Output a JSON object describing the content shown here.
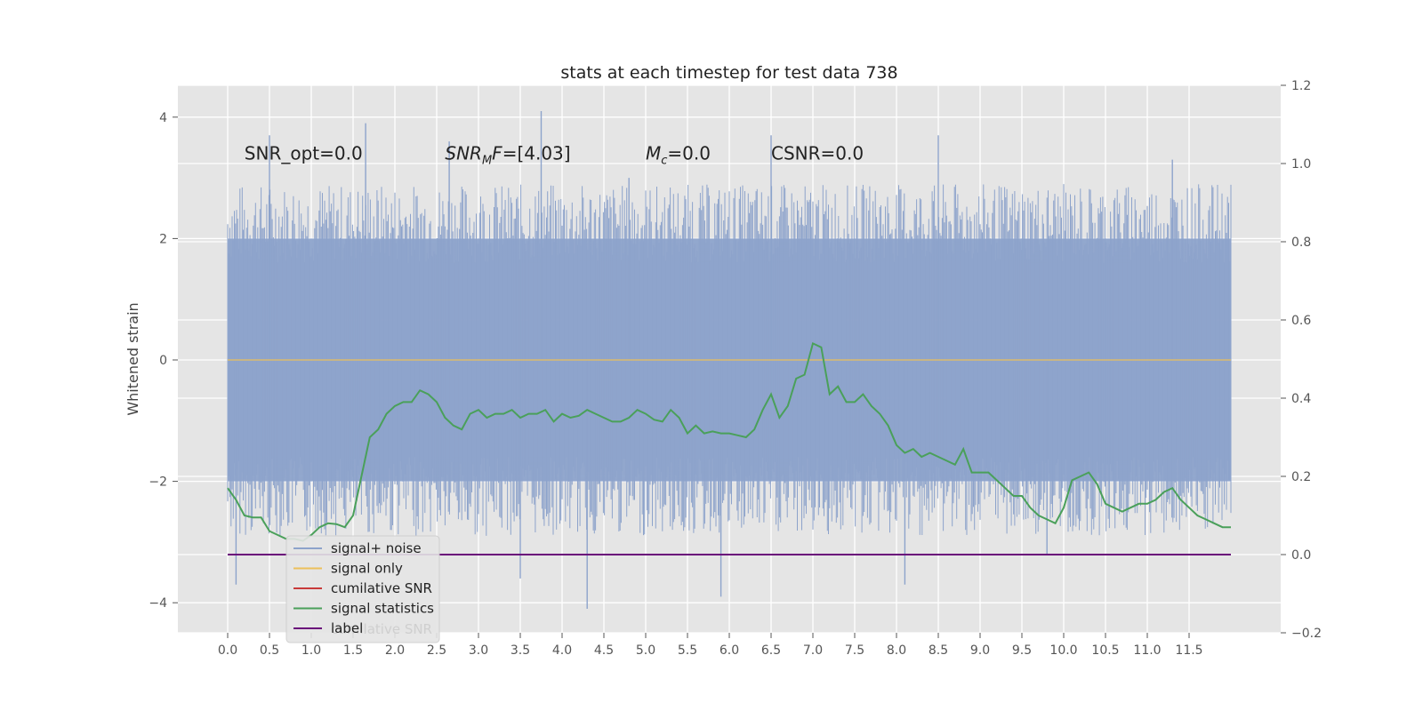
{
  "chart_data": {
    "type": "line",
    "title": "stats at each timestep for test data 738",
    "ylabel": "Whitened strain",
    "xlabel": "",
    "xlim": [
      -0.2,
      12.5
    ],
    "ylim": [
      -4.5,
      4.5
    ],
    "y2lim": [
      -0.2,
      1.2
    ],
    "grid": true,
    "background": "#e5e5e5",
    "x_ticks": [
      "0.0",
      "0.5",
      "1.0",
      "1.5",
      "2.0",
      "2.5",
      "3.0",
      "3.5",
      "4.0",
      "4.5",
      "5.0",
      "5.5",
      "6.0",
      "6.5",
      "7.0",
      "7.5",
      "8.0",
      "8.5",
      "9.0",
      "9.5",
      "10.0",
      "10.5",
      "11.0",
      "11.5"
    ],
    "y_ticks": [
      "4",
      "2",
      "0",
      "−2",
      "−4"
    ],
    "y2_ticks": [
      "1.2",
      "1.0",
      "0.8",
      "0.6",
      "0.4",
      "0.2",
      "0.0",
      "−0.2"
    ],
    "annotations": [
      {
        "text": "SNR_opt=0.0",
        "x": 0.2,
        "y": 3.3
      },
      {
        "base": "SNR",
        "sub": "M",
        "tail": "F=[4.03]",
        "x": 2.6,
        "y": 3.3
      },
      {
        "base": "M",
        "sub": "c",
        "tail": "=0.0",
        "x": 5.0,
        "y": 3.3
      },
      {
        "text": "CSNR=0.0",
        "x": 6.5,
        "y": 3.3
      }
    ],
    "legend": {
      "placement": "lower-left",
      "entries": [
        {
          "label": "signal+ noise",
          "color": "#8da3cb"
        },
        {
          "label": "signal only",
          "color": "#ecc05a"
        },
        {
          "label": "cumilative SNR",
          "color": "#c83a3a"
        },
        {
          "label": "signal statistics",
          "color": "#4aa05a"
        },
        {
          "label": "label",
          "color": "#6a0a7a"
        }
      ],
      "hidden_text": "cumilative SNR"
    },
    "series": [
      {
        "name": "signal+ noise",
        "axis": "left",
        "color": "#8da3cb",
        "x_range": [
          0.0,
          12.0
        ],
        "envelope_upper": 2.0,
        "envelope_lower": -2.0,
        "peak_values": [
          {
            "x": 0.5,
            "y": 3.7
          },
          {
            "x": 1.65,
            "y": 3.9
          },
          {
            "x": 2.65,
            "y": 3.6
          },
          {
            "x": 3.75,
            "y": 4.1
          },
          {
            "x": 4.8,
            "y": 3.0
          },
          {
            "x": 6.5,
            "y": 3.7
          },
          {
            "x": 8.5,
            "y": 3.7
          },
          {
            "x": 11.3,
            "y": 3.3
          },
          {
            "x": 0.1,
            "y": -3.7
          },
          {
            "x": 3.5,
            "y": -3.6
          },
          {
            "x": 4.3,
            "y": -4.1
          },
          {
            "x": 5.9,
            "y": -3.9
          },
          {
            "x": 8.1,
            "y": -3.7
          },
          {
            "x": 9.8,
            "y": -3.2
          }
        ]
      },
      {
        "name": "signal only",
        "axis": "left",
        "color": "#ecc05a",
        "x": [
          0.0,
          12.0
        ],
        "values": [
          0.0,
          0.0
        ]
      },
      {
        "name": "signal statistics",
        "axis": "right",
        "color": "#4aa05a",
        "x": [
          0.0,
          0.1,
          0.2,
          0.3,
          0.4,
          0.5,
          0.6,
          0.7,
          0.8,
          0.9,
          1.0,
          1.1,
          1.2,
          1.3,
          1.4,
          1.5,
          1.6,
          1.7,
          1.8,
          1.9,
          2.0,
          2.1,
          2.2,
          2.3,
          2.4,
          2.5,
          2.6,
          2.7,
          2.8,
          2.9,
          3.0,
          3.1,
          3.2,
          3.3,
          3.4,
          3.5,
          3.6,
          3.7,
          3.8,
          3.9,
          4.0,
          4.1,
          4.2,
          4.3,
          4.4,
          4.5,
          4.6,
          4.7,
          4.8,
          4.9,
          5.0,
          5.1,
          5.2,
          5.3,
          5.4,
          5.5,
          5.6,
          5.7,
          5.8,
          5.9,
          6.0,
          6.1,
          6.2,
          6.3,
          6.4,
          6.5,
          6.6,
          6.7,
          6.8,
          6.9,
          7.0,
          7.1,
          7.2,
          7.3,
          7.4,
          7.5,
          7.6,
          7.7,
          7.8,
          7.9,
          8.0,
          8.1,
          8.2,
          8.3,
          8.4,
          8.5,
          8.6,
          8.7,
          8.8,
          8.9,
          9.0,
          9.1,
          9.2,
          9.3,
          9.4,
          9.5,
          9.6,
          9.7,
          9.8,
          9.9,
          10.0,
          10.1,
          10.2,
          10.3,
          10.4,
          10.5,
          10.6,
          10.7,
          10.8,
          10.9,
          11.0,
          11.1,
          11.2,
          11.3,
          11.4,
          11.5,
          11.6,
          11.7,
          11.8,
          11.9,
          12.0
        ],
        "values": [
          0.17,
          0.14,
          0.1,
          0.095,
          0.095,
          0.06,
          0.05,
          0.04,
          0.04,
          0.035,
          0.05,
          0.07,
          0.08,
          0.078,
          0.07,
          0.1,
          0.2,
          0.3,
          0.32,
          0.36,
          0.38,
          0.39,
          0.39,
          0.42,
          0.41,
          0.39,
          0.35,
          0.33,
          0.32,
          0.36,
          0.37,
          0.35,
          0.36,
          0.36,
          0.37,
          0.35,
          0.36,
          0.36,
          0.37,
          0.34,
          0.36,
          0.35,
          0.355,
          0.37,
          0.36,
          0.35,
          0.34,
          0.34,
          0.35,
          0.37,
          0.36,
          0.345,
          0.34,
          0.37,
          0.35,
          0.31,
          0.33,
          0.31,
          0.315,
          0.31,
          0.31,
          0.305,
          0.3,
          0.32,
          0.37,
          0.41,
          0.35,
          0.38,
          0.45,
          0.46,
          0.54,
          0.53,
          0.41,
          0.43,
          0.39,
          0.39,
          0.41,
          0.38,
          0.36,
          0.33,
          0.28,
          0.26,
          0.27,
          0.25,
          0.26,
          0.25,
          0.24,
          0.23,
          0.27,
          0.21,
          0.21,
          0.21,
          0.19,
          0.17,
          0.15,
          0.15,
          0.12,
          0.1,
          0.09,
          0.08,
          0.12,
          0.19,
          0.2,
          0.21,
          0.18,
          0.13,
          0.12,
          0.11,
          0.12,
          0.13,
          0.13,
          0.14,
          0.16,
          0.17,
          0.14,
          0.12,
          0.1,
          0.09,
          0.08,
          0.07,
          0.07
        ]
      },
      {
        "name": "label",
        "axis": "right",
        "color": "#6a0a7a",
        "x": [
          0.0,
          12.0
        ],
        "values": [
          0.0,
          0.0
        ]
      }
    ]
  }
}
